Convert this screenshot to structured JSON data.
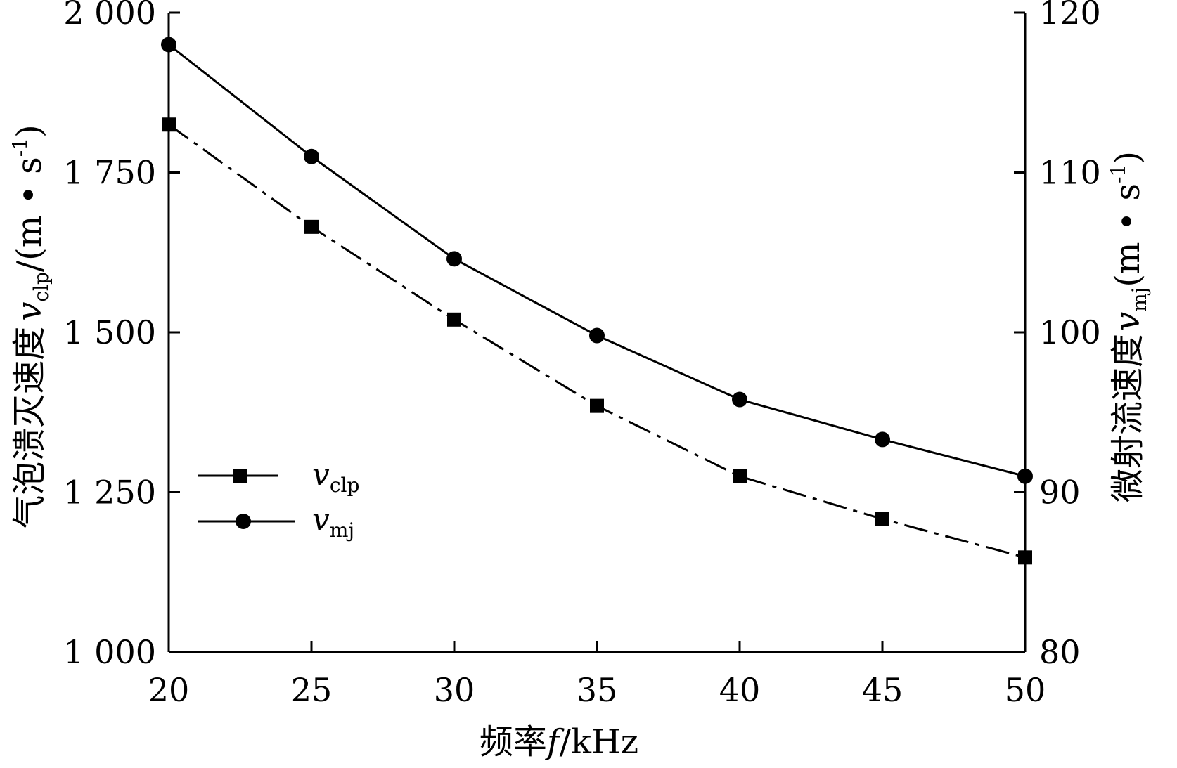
{
  "chart_data": {
    "type": "line",
    "x": [
      20,
      25,
      30,
      35,
      40,
      45,
      50
    ],
    "xlabel": "频率f/kHz",
    "xlim": [
      20,
      50
    ],
    "x_ticks": [
      "20",
      "25",
      "30",
      "35",
      "40",
      "45",
      "50"
    ],
    "ylabel_left": "气泡溃灭速度v_clp/(m·s^-1)",
    "ylim_left": [
      1000,
      2000
    ],
    "y_ticks_left": [
      "1 000",
      "1 250",
      "1 500",
      "1 750",
      "2 000"
    ],
    "ylabel_right": "微射流速度v_mj(m·s^-1)",
    "ylim_right": [
      80,
      120
    ],
    "y_ticks_right": [
      "80",
      "90",
      "100",
      "110",
      "120"
    ],
    "grid": false,
    "legend_position": "lower-left",
    "series": [
      {
        "name": "v_clp",
        "axis": "left",
        "marker": "square",
        "line_style": "dash-dot",
        "values": [
          1825,
          1665,
          1520,
          1385,
          1275,
          1208,
          1148
        ]
      },
      {
        "name": "v_mj",
        "axis": "right",
        "marker": "circle",
        "line_style": "solid",
        "values": [
          118,
          111,
          104.6,
          99.8,
          95.8,
          93.3,
          91
        ]
      }
    ]
  },
  "labels": {
    "xlabel_main": "频率",
    "xlabel_var": "f",
    "xlabel_unit": "/kHz",
    "ylabel_left_main": "气泡溃灭速度",
    "ylabel_left_var": "v",
    "ylabel_left_sub": "clp",
    "ylabel_left_unit": "/(m • s",
    "ylabel_left_exp": "-1",
    "ylabel_left_close": ")",
    "ylabel_right_main": "微射流速度",
    "ylabel_right_var": "v",
    "ylabel_right_sub": "mj",
    "ylabel_right_unit": "(m • s",
    "ylabel_right_exp": "-1",
    "ylabel_right_close": ")",
    "legend_clp_var": "v",
    "legend_clp_sub": "clp",
    "legend_mj_var": "v",
    "legend_mj_sub": "mj"
  }
}
